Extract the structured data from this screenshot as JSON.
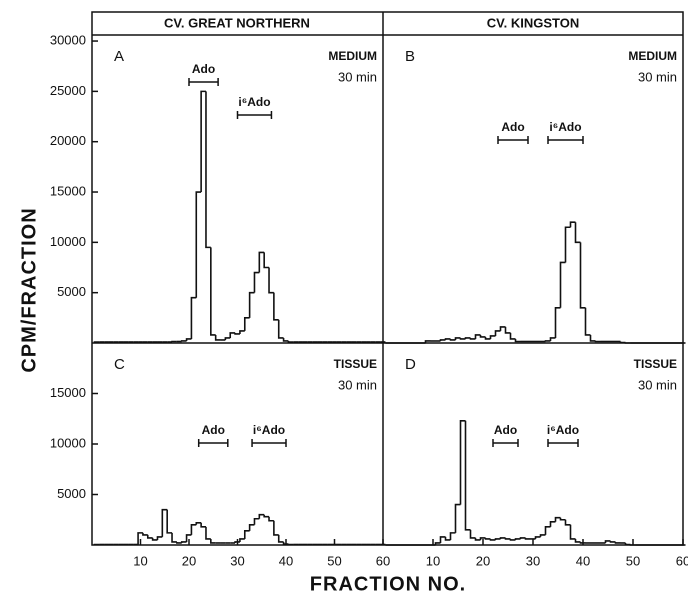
{
  "column_titles": [
    "CV. GREAT NORTHERN",
    "CV. KINGSTON"
  ],
  "y_label": "CPM/FRACTION",
  "x_label": "FRACTION NO.",
  "chart_data": [
    {
      "type": "step",
      "letter": "A",
      "condition": "MEDIUM",
      "time": "30 min",
      "x": [
        1,
        2,
        3,
        4,
        5,
        6,
        7,
        8,
        9,
        10,
        11,
        12,
        13,
        14,
        15,
        16,
        17,
        18,
        19,
        20,
        21,
        22,
        23,
        24,
        25,
        26,
        27,
        28,
        29,
        30,
        31,
        32,
        33,
        34,
        35,
        36,
        37,
        38,
        39,
        40,
        41,
        42,
        43,
        44,
        45,
        46,
        47,
        48,
        49,
        50,
        51,
        52,
        53,
        54,
        55,
        56,
        57,
        58,
        59,
        60
      ],
      "values": [
        100,
        100,
        100,
        100,
        100,
        100,
        100,
        100,
        100,
        100,
        100,
        100,
        100,
        100,
        100,
        100,
        150,
        150,
        200,
        400,
        4500,
        15000,
        25000,
        9500,
        800,
        300,
        300,
        500,
        1000,
        900,
        1200,
        2500,
        5000,
        7000,
        9000,
        7500,
        5000,
        2300,
        500,
        200,
        100,
        100,
        100,
        100,
        100,
        100,
        100,
        100,
        100,
        100,
        100,
        100,
        100,
        100,
        100,
        100,
        100,
        100,
        100,
        100
      ],
      "xlim": [
        0,
        60
      ],
      "ylim": [
        0,
        30600
      ],
      "yticks": [
        5000,
        10000,
        15000,
        20000,
        25000,
        30000
      ],
      "markers": [
        {
          "label": "Ado",
          "range": [
            20,
            26
          ]
        },
        {
          "label": "i⁶Ado",
          "range": [
            30,
            37
          ]
        }
      ]
    },
    {
      "type": "step",
      "letter": "B",
      "condition": "MEDIUM",
      "time": "30 min",
      "x": [
        1,
        2,
        3,
        4,
        5,
        6,
        7,
        8,
        9,
        10,
        11,
        12,
        13,
        14,
        15,
        16,
        17,
        18,
        19,
        20,
        21,
        22,
        23,
        24,
        25,
        26,
        27,
        28,
        29,
        30,
        31,
        32,
        33,
        34,
        35,
        36,
        37,
        38,
        39,
        40,
        41,
        42,
        43,
        44,
        45,
        46,
        47,
        48,
        49,
        50,
        51,
        52,
        53,
        54,
        55,
        56,
        57,
        58,
        59,
        60
      ],
      "values": [
        0,
        0,
        0,
        0,
        0,
        0,
        0,
        0,
        200,
        200,
        200,
        300,
        400,
        300,
        500,
        400,
        500,
        400,
        800,
        600,
        400,
        700,
        1200,
        1600,
        1000,
        400,
        150,
        150,
        150,
        150,
        150,
        150,
        200,
        500,
        3500,
        8000,
        11500,
        12000,
        10000,
        3500,
        800,
        200,
        150,
        150,
        150,
        150,
        150,
        50,
        0,
        0,
        0,
        0,
        0,
        0,
        0,
        0,
        0,
        0,
        0,
        0
      ],
      "xlim": [
        0,
        60
      ],
      "ylim": [
        0,
        30600
      ],
      "markers": [
        {
          "label": "Ado",
          "range": [
            23,
            29
          ]
        },
        {
          "label": "i⁶Ado",
          "range": [
            33,
            40
          ]
        }
      ]
    },
    {
      "type": "step",
      "letter": "C",
      "condition": "TISSUE",
      "time": "30 min",
      "x": [
        1,
        2,
        3,
        4,
        5,
        6,
        7,
        8,
        9,
        10,
        11,
        12,
        13,
        14,
        15,
        16,
        17,
        18,
        19,
        20,
        21,
        22,
        23,
        24,
        25,
        26,
        27,
        28,
        29,
        30,
        31,
        32,
        33,
        34,
        35,
        36,
        37,
        38,
        39,
        40,
        41,
        42,
        43,
        44,
        45,
        46,
        47,
        48,
        49,
        50,
        51,
        52,
        53,
        54,
        55,
        56,
        57,
        58,
        59,
        60
      ],
      "values": [
        50,
        50,
        50,
        50,
        50,
        50,
        50,
        50,
        50,
        1200,
        1000,
        700,
        500,
        800,
        3500,
        1200,
        300,
        200,
        300,
        1000,
        2000,
        2200,
        1800,
        600,
        200,
        200,
        200,
        200,
        200,
        300,
        600,
        1400,
        2000,
        2600,
        3000,
        2800,
        2400,
        1000,
        300,
        100,
        50,
        50,
        50,
        50,
        50,
        50,
        50,
        50,
        50,
        50,
        50,
        50,
        50,
        50,
        50,
        50,
        50,
        50,
        50,
        50
      ],
      "xlim": [
        0,
        60
      ],
      "ylim": [
        0,
        20000
      ],
      "yticks": [
        5000,
        10000,
        15000
      ],
      "xticks": [
        10,
        20,
        30,
        40,
        50,
        60
      ],
      "markers": [
        {
          "label": "Ado",
          "range": [
            22,
            28
          ]
        },
        {
          "label": "i⁶Ado",
          "range": [
            33,
            40
          ]
        }
      ]
    },
    {
      "type": "step",
      "letter": "D",
      "condition": "TISSUE",
      "time": "30 min",
      "x": [
        1,
        2,
        3,
        4,
        5,
        6,
        7,
        8,
        9,
        10,
        11,
        12,
        13,
        14,
        15,
        16,
        17,
        18,
        19,
        20,
        21,
        22,
        23,
        24,
        25,
        26,
        27,
        28,
        29,
        30,
        31,
        32,
        33,
        34,
        35,
        36,
        37,
        38,
        39,
        40,
        41,
        42,
        43,
        44,
        45,
        46,
        47,
        48,
        49,
        50,
        51,
        52,
        53,
        54,
        55,
        56,
        57,
        58,
        59,
        60
      ],
      "values": [
        0,
        0,
        0,
        0,
        0,
        0,
        0,
        0,
        0,
        0,
        200,
        800,
        500,
        1200,
        4000,
        12300,
        1500,
        700,
        500,
        700,
        600,
        500,
        600,
        700,
        600,
        500,
        600,
        700,
        600,
        600,
        800,
        1000,
        1800,
        2300,
        2700,
        2500,
        2000,
        600,
        300,
        200,
        200,
        200,
        200,
        200,
        400,
        300,
        200,
        200,
        50,
        0,
        0,
        0,
        0,
        0,
        0,
        0,
        0,
        0,
        0,
        0
      ],
      "xlim": [
        0,
        60
      ],
      "ylim": [
        0,
        20000
      ],
      "xticks": [
        10,
        20,
        30,
        40,
        50,
        60
      ],
      "markers": [
        {
          "label": "Ado",
          "range": [
            22,
            27
          ]
        },
        {
          "label": "i⁶Ado",
          "range": [
            33,
            39
          ]
        }
      ]
    }
  ]
}
